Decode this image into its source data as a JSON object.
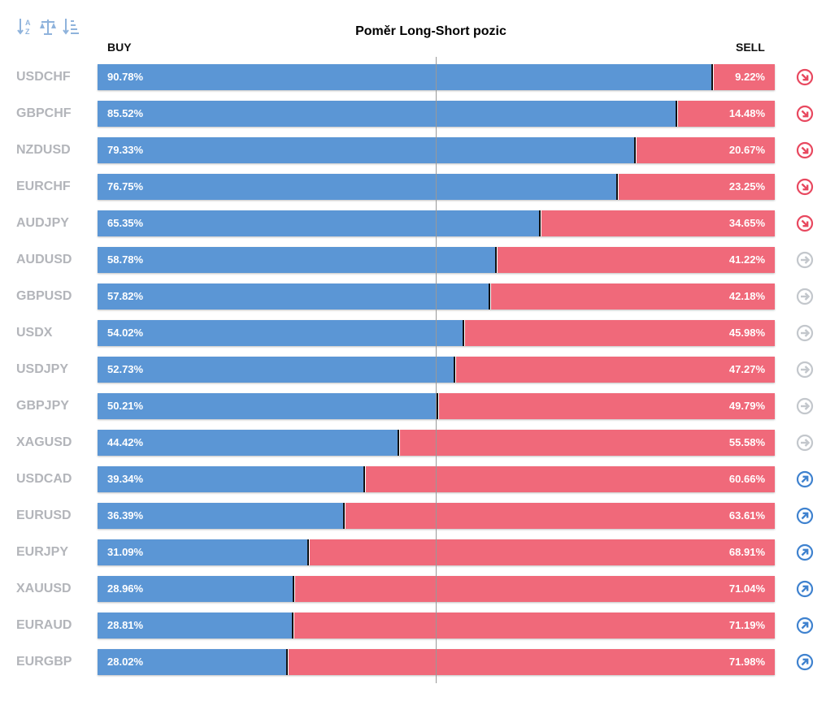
{
  "toolbar": {
    "icons": [
      "sort-alpha-icon",
      "balance-scale-icon",
      "sort-amount-icon"
    ],
    "icon_color": "#8fb3dc"
  },
  "colors": {
    "buy": "#5b96d5",
    "sell": "#f0697a",
    "trend_down": "#e8485f",
    "trend_neutral": "#c3c7cc",
    "trend_up": "#3f82cf"
  },
  "chart_data": {
    "type": "bar",
    "title": "Poměr Long-Short pozic",
    "buy_label": "BUY",
    "sell_label": "SELL",
    "value_suffix": "%",
    "categories": [
      "USDCHF",
      "GBPCHF",
      "NZDUSD",
      "EURCHF",
      "AUDJPY",
      "AUDUSD",
      "GBPUSD",
      "USDX",
      "USDJPY",
      "GBPJPY",
      "XAGUSD",
      "USDCAD",
      "EURUSD",
      "EURJPY",
      "XAUUSD",
      "EURAUD",
      "EURGBP"
    ],
    "series": [
      {
        "name": "BUY",
        "values": [
          90.78,
          85.52,
          79.33,
          76.75,
          65.35,
          58.78,
          57.82,
          54.02,
          52.73,
          50.21,
          44.42,
          39.34,
          36.39,
          31.09,
          28.96,
          28.81,
          28.02
        ]
      },
      {
        "name": "SELL",
        "values": [
          9.22,
          14.48,
          20.67,
          23.25,
          34.65,
          41.22,
          42.18,
          45.98,
          47.27,
          49.79,
          55.58,
          60.66,
          63.61,
          68.91,
          71.04,
          71.19,
          71.98
        ]
      }
    ],
    "trends": [
      "down",
      "down",
      "down",
      "down",
      "down",
      "neutral",
      "neutral",
      "neutral",
      "neutral",
      "neutral",
      "neutral",
      "up",
      "up",
      "up",
      "up",
      "up",
      "up"
    ],
    "xlim": [
      0,
      100
    ],
    "stacked": true,
    "orientation": "horizontal"
  }
}
